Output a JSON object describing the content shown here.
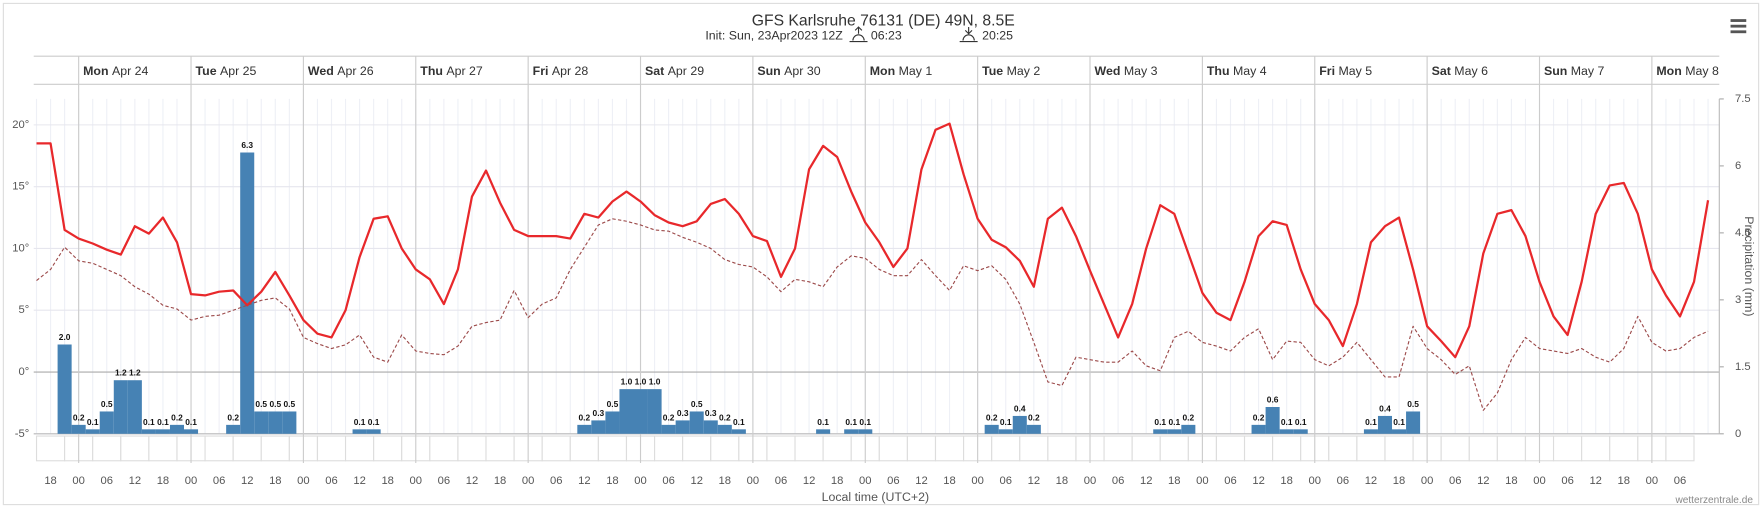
{
  "chart_data": {
    "type": "line",
    "title": "GFS Karlsruhe 76131 (DE) 49N, 8.5E",
    "subtitle": "Init: Sun, 23Apr2023 12Z",
    "sunrise": "06:23",
    "sunset": "20:25",
    "x_label": "Local time (UTC+2)",
    "y2_label": "Precipitation (mm)",
    "credit": "wetterzentrale.de",
    "days": [
      {
        "weekday": "Mon",
        "date": "Apr 24"
      },
      {
        "weekday": "Tue",
        "date": "Apr 25"
      },
      {
        "weekday": "Wed",
        "date": "Apr 26"
      },
      {
        "weekday": "Thu",
        "date": "Apr 27"
      },
      {
        "weekday": "Fri",
        "date": "Apr 28"
      },
      {
        "weekday": "Sat",
        "date": "Apr 29"
      },
      {
        "weekday": "Sun",
        "date": "Apr 30"
      },
      {
        "weekday": "Mon",
        "date": "May 1"
      },
      {
        "weekday": "Tue",
        "date": "May 2"
      },
      {
        "weekday": "Wed",
        "date": "May 3"
      },
      {
        "weekday": "Thu",
        "date": "May 4"
      },
      {
        "weekday": "Fri",
        "date": "May 5"
      },
      {
        "weekday": "Sat",
        "date": "May 6"
      },
      {
        "weekday": "Sun",
        "date": "May 7"
      },
      {
        "weekday": "Mon",
        "date": "May 8"
      }
    ],
    "categories": [
      null,
      "18",
      null,
      "00",
      null,
      "06",
      null,
      "12",
      null,
      "18",
      null,
      "00",
      null,
      "06",
      null,
      "12",
      null,
      "18",
      null,
      "00",
      null,
      "06",
      null,
      "12",
      null,
      "18",
      null,
      "00",
      null,
      "06",
      null,
      "12",
      null,
      "18",
      null,
      "00",
      null,
      "06",
      null,
      "12",
      null,
      "18",
      null,
      "00",
      null,
      "06",
      null,
      "12",
      null,
      "18",
      null,
      "00",
      null,
      "06",
      null,
      "12",
      null,
      "18",
      null,
      "00",
      null,
      "06",
      null,
      "12",
      null,
      "18",
      null,
      "00",
      null,
      "06",
      null,
      "12",
      null,
      "18",
      null,
      "00",
      null,
      "06",
      null,
      "12",
      null,
      "18",
      null,
      "00",
      null,
      "06",
      null,
      "12",
      null,
      "18",
      null,
      "00",
      null,
      "06",
      null,
      "12",
      null,
      "18",
      null,
      "00",
      null,
      "06",
      null,
      "12",
      null,
      "18",
      null,
      "00",
      null,
      "06",
      null,
      "12",
      null,
      "18",
      null,
      "00",
      null,
      "06",
      null,
      null
    ],
    "series": [
      {
        "type": "line",
        "color": "#e8282b",
        "values": [
          18.5,
          18.5,
          11.5,
          10.8,
          10.4,
          9.9,
          9.5,
          11.8,
          11.2,
          12.5,
          10.5,
          6.3,
          6.2,
          6.5,
          6.6,
          5.4,
          6.5,
          8.1,
          6.2,
          4.2,
          3.1,
          2.8,
          5.0,
          9.3,
          12.4,
          12.6,
          10.0,
          8.3,
          7.5,
          5.5,
          8.3,
          14.2,
          16.3,
          13.7,
          11.5,
          11.0,
          11.0,
          11.0,
          10.8,
          12.8,
          12.5,
          13.8,
          14.6,
          13.8,
          12.7,
          12.1,
          11.8,
          12.2,
          13.6,
          14.0,
          12.8,
          11.0,
          10.6,
          7.7,
          10.0,
          16.4,
          18.3,
          17.4,
          14.6,
          12.1,
          10.5,
          8.5,
          10.0,
          16.4,
          19.6,
          20.1,
          16.0,
          12.4,
          10.7,
          10.1,
          9.0,
          6.9,
          12.4,
          13.3,
          11.0,
          8.2,
          5.5,
          2.8,
          5.5,
          10.0,
          13.5,
          12.8,
          9.6,
          6.4,
          4.8,
          4.2,
          7.3,
          11.0,
          12.2,
          11.9,
          8.3,
          5.5,
          4.2,
          2.1,
          5.5,
          10.5,
          11.8,
          12.5,
          8.3,
          3.7,
          2.5,
          1.2,
          3.7,
          9.6,
          12.8,
          13.1,
          11.0,
          7.3,
          4.5,
          3.0,
          7.3,
          12.8,
          15.1,
          15.3,
          12.8,
          8.3,
          6.2,
          4.5,
          7.3,
          13.9
        ]
      },
      {
        "type": "line",
        "style": "dashed",
        "color": "#9c4a4a",
        "values": [
          7.4,
          8.3,
          10.1,
          9.0,
          8.8,
          8.3,
          7.8,
          6.9,
          6.3,
          5.4,
          5.1,
          4.2,
          4.5,
          4.6,
          5.0,
          5.4,
          5.8,
          6.0,
          5.1,
          2.8,
          2.3,
          1.9,
          2.2,
          3.0,
          1.2,
          0.8,
          3.0,
          1.7,
          1.5,
          1.4,
          2.1,
          3.7,
          4.0,
          4.2,
          6.6,
          4.4,
          5.5,
          6.0,
          8.3,
          10.1,
          11.9,
          12.4,
          12.2,
          11.9,
          11.5,
          11.4,
          10.9,
          10.5,
          10.0,
          9.1,
          8.7,
          8.5,
          7.7,
          6.5,
          7.5,
          7.3,
          6.9,
          8.5,
          9.4,
          9.2,
          8.3,
          7.8,
          7.8,
          9.1,
          7.8,
          6.6,
          8.6,
          8.2,
          8.6,
          7.5,
          5.5,
          2.4,
          -0.8,
          -1.1,
          1.2,
          1.0,
          0.8,
          0.8,
          1.7,
          0.5,
          0.1,
          2.8,
          3.3,
          2.4,
          2.1,
          1.7,
          2.8,
          3.5,
          1.0,
          2.5,
          2.4,
          1.0,
          0.5,
          1.2,
          2.4,
          1.0,
          -0.4,
          -0.4,
          3.7,
          1.9,
          1.0,
          -0.2,
          0.5,
          -3.1,
          -1.7,
          1.0,
          2.8,
          1.9,
          1.7,
          1.5,
          1.9,
          1.2,
          0.8,
          1.9,
          4.5,
          2.4,
          1.7,
          1.9,
          2.8,
          3.3
        ]
      },
      {
        "type": "bar",
        "axis": "y2",
        "color": "#4682b4",
        "values": [
          null,
          null,
          2.0,
          0.2,
          0.1,
          0.5,
          1.2,
          1.2,
          0.1,
          0.1,
          0.2,
          0.1,
          null,
          null,
          0.2,
          6.3,
          0.5,
          0.5,
          0.5,
          null,
          null,
          null,
          null,
          0.1,
          0.1,
          null,
          null,
          null,
          null,
          null,
          null,
          null,
          null,
          null,
          null,
          null,
          null,
          null,
          null,
          0.2,
          0.3,
          0.5,
          1.0,
          1.0,
          1.0,
          0.2,
          0.3,
          0.5,
          0.3,
          0.2,
          0.1,
          null,
          null,
          null,
          null,
          null,
          0.1,
          null,
          0.1,
          0.1,
          null,
          null,
          null,
          null,
          null,
          null,
          null,
          null,
          0.2,
          0.1,
          0.4,
          0.2,
          null,
          null,
          null,
          null,
          null,
          null,
          null,
          null,
          0.1,
          0.1,
          0.2,
          null,
          null,
          null,
          null,
          0.2,
          0.6,
          0.1,
          0.1,
          null,
          null,
          null,
          null,
          0.1,
          0.4,
          0.1,
          0.5,
          null,
          null,
          null,
          null,
          null,
          null,
          null,
          null,
          null,
          null,
          null,
          null,
          null,
          null,
          null,
          null,
          null,
          null,
          null,
          null,
          null
        ],
        "value_labels": [
          null,
          null,
          "2.0",
          "0.2",
          "0.1",
          "0.5",
          "1.2",
          "1.2",
          "0.1",
          "0.1",
          "0.2",
          "0.1",
          null,
          null,
          "0.2",
          "6.3",
          "0.5",
          "0.5",
          "0.5",
          null,
          null,
          null,
          null,
          "0.1",
          "0.1",
          null,
          null,
          null,
          null,
          null,
          null,
          null,
          null,
          null,
          null,
          null,
          null,
          null,
          null,
          "0.2",
          "0.3",
          "0.5",
          "1.0",
          "1.0",
          "1.0",
          "0.2",
          "0.3",
          "0.5",
          "0.3",
          "0.2",
          "0.1",
          null,
          null,
          null,
          null,
          null,
          "0.1",
          null,
          "0.1",
          "0.1",
          null,
          null,
          null,
          null,
          null,
          null,
          null,
          null,
          "0.2",
          "0.1",
          "0.4",
          "0.2",
          null,
          null,
          null,
          null,
          null,
          null,
          null,
          null,
          "0.1",
          "0.1",
          "0.2",
          null,
          null,
          null,
          null,
          "0.2",
          "0.6",
          "0.1",
          "0.1",
          null,
          null,
          null,
          null,
          "0.1",
          "0.4",
          "0.1",
          "0.5",
          null,
          null,
          null,
          null,
          null,
          null,
          null,
          null,
          null,
          null,
          null,
          null,
          null,
          null,
          null,
          null,
          null,
          null,
          null,
          null,
          null
        ]
      }
    ],
    "ylim": [
      -5,
      22.1
    ],
    "yticks": [
      {
        "value": -5,
        "label": "-5°"
      },
      {
        "value": 0,
        "label": "0°"
      },
      {
        "value": 5,
        "label": "5°"
      },
      {
        "value": 10,
        "label": "10°"
      },
      {
        "value": 15,
        "label": "15°"
      },
      {
        "value": 20,
        "label": "20°"
      }
    ],
    "y2lim": [
      0,
      7.5
    ],
    "y2ticks": [
      0,
      1.5,
      3,
      4.5,
      6,
      7.5
    ],
    "grid": true
  }
}
